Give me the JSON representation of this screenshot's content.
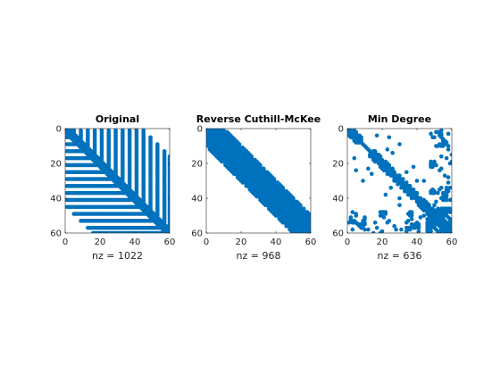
{
  "chart_data": [
    {
      "type": "scatter",
      "title": "Original",
      "xlabel": "nz = 1022",
      "xlim": [
        0,
        60
      ],
      "ylim": [
        0,
        60
      ],
      "y_reversed": true,
      "x_ticks": [
        "0",
        "20",
        "40",
        "60"
      ],
      "y_ticks": [
        "0",
        "20",
        "40",
        "60"
      ],
      "marker_color": "#0072bd",
      "grid": false,
      "pattern": "original",
      "series": [
        {
          "values": []
        }
      ]
    },
    {
      "type": "scatter",
      "title": "Reverse Cuthill-McKee",
      "xlabel": "nz = 968",
      "xlim": [
        0,
        60
      ],
      "ylim": [
        0,
        60
      ],
      "y_reversed": true,
      "x_ticks": [
        "0",
        "20",
        "40",
        "60"
      ],
      "y_ticks": [
        "0",
        "20",
        "40",
        "60"
      ],
      "marker_color": "#0072bd",
      "grid": false,
      "pattern": "band",
      "series": [
        {
          "values": []
        }
      ]
    },
    {
      "type": "scatter",
      "title": "Min Degree",
      "xlabel": "nz = 636",
      "xlim": [
        0,
        60
      ],
      "ylim": [
        0,
        60
      ],
      "y_reversed": true,
      "x_ticks": [
        "0",
        "20",
        "40",
        "60"
      ],
      "y_ticks": [
        "0",
        "20",
        "40",
        "60"
      ],
      "marker_color": "#0072bd",
      "grid": false,
      "pattern": "mindegree",
      "series": [
        {
          "values": []
        }
      ]
    }
  ]
}
